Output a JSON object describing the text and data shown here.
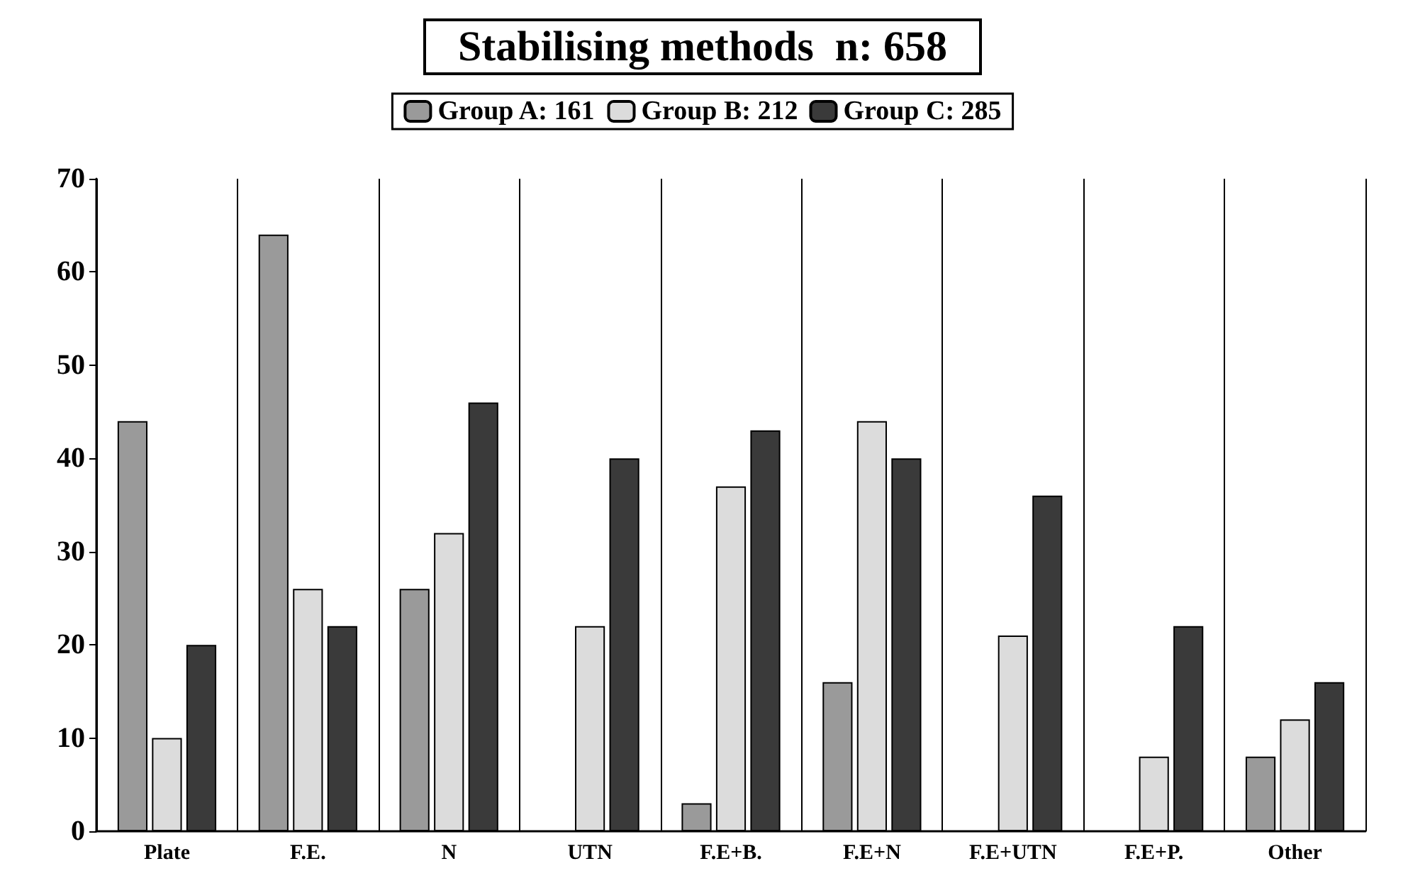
{
  "chart_data": {
    "type": "bar",
    "title": "Stabilising methods  n: 658",
    "categories": [
      "Plate",
      "F.E.",
      "N",
      "UTN",
      "F.E+B.",
      "F.E+N",
      "F.E+UTN",
      "F.E+P.",
      "Other"
    ],
    "series": [
      {
        "name": "Group A: 161",
        "color": "#9a9a9a",
        "values": [
          44,
          64,
          26,
          null,
          3,
          16,
          null,
          null,
          8
        ]
      },
      {
        "name": "Group B: 212",
        "color": "#dcdcdc",
        "values": [
          10,
          26,
          32,
          22,
          37,
          44,
          21,
          8,
          12
        ]
      },
      {
        "name": "Group C: 285",
        "color": "#3a3a3a",
        "values": [
          20,
          22,
          46,
          40,
          43,
          40,
          36,
          22,
          16
        ]
      }
    ],
    "ylim": [
      0,
      70
    ],
    "yticks": [
      0,
      10,
      20,
      30,
      40,
      50,
      60,
      70
    ],
    "grid": "x",
    "legend": "top"
  }
}
